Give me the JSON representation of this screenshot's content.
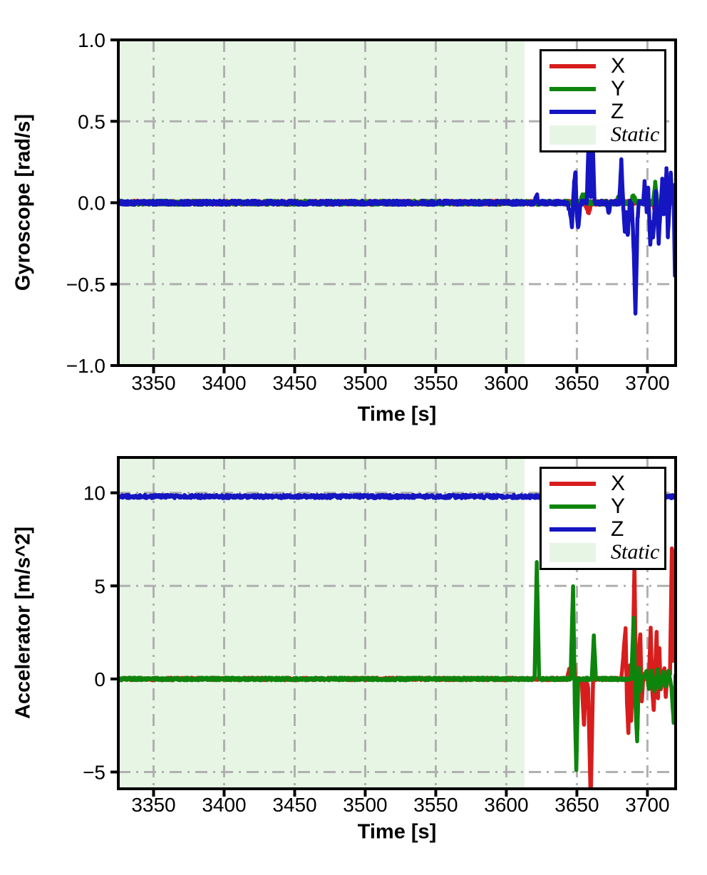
{
  "chart_data": [
    {
      "type": "line",
      "title": "",
      "xlabel": "Time [s]",
      "ylabel": "Gyroscope [rad/s]",
      "xlim": [
        3325,
        3720
      ],
      "ylim": [
        -1.0,
        1.0
      ],
      "xticks": [
        3350,
        3400,
        3450,
        3500,
        3550,
        3600,
        3650,
        3700
      ],
      "xtick_labels": [
        "3350",
        "3400",
        "3450",
        "3500",
        "3550",
        "3600",
        "3650",
        "3700"
      ],
      "yticks": [
        1.0,
        0.5,
        0.0,
        -0.5,
        -1.0
      ],
      "ytick_labels": [
        "1.0",
        "0.5",
        "0.0",
        "−0.5",
        "−1.0"
      ],
      "grid": "dash-dot",
      "grid_color": "#b0b0b0",
      "legend_position": "upper right",
      "static_region": {
        "label": "Static",
        "fill": "#e7f5e5",
        "xstart": 3325,
        "xend": 3613
      },
      "series": [
        {
          "name": "X",
          "color": "#d81d1d",
          "noise": 0.013,
          "anchors": [
            [
              3325,
              0
            ],
            [
              3655,
              0
            ],
            [
              3657,
              -0.03
            ],
            [
              3658.5,
              -0.07
            ],
            [
              3660,
              0
            ],
            [
              3704,
              0
            ],
            [
              3705.5,
              -0.05
            ],
            [
              3707,
              0
            ],
            [
              3720,
              0
            ]
          ]
        },
        {
          "name": "Y",
          "color": "#0d850d",
          "noise": 0.013,
          "anchors": [
            [
              3325,
              0
            ],
            [
              3652,
              0
            ],
            [
              3654,
              0.04
            ],
            [
              3656,
              0.04
            ],
            [
              3658,
              0
            ],
            [
              3678,
              0
            ],
            [
              3680,
              0.04
            ],
            [
              3682,
              0
            ],
            [
              3688,
              0
            ],
            [
              3690,
              0.05
            ],
            [
              3692,
              0
            ],
            [
              3704,
              0
            ],
            [
              3705.5,
              0.13
            ],
            [
              3707,
              0
            ],
            [
              3711,
              0
            ],
            [
              3712.5,
              0.1
            ],
            [
              3714,
              0
            ],
            [
              3720,
              0
            ]
          ]
        },
        {
          "name": "Z",
          "color": "#1515c2",
          "noise": 0.013,
          "anchors": [
            [
              3325,
              0
            ],
            [
              3620,
              0
            ],
            [
              3621.5,
              0.05
            ],
            [
              3623,
              0
            ],
            [
              3643,
              0
            ],
            [
              3645,
              -0.05
            ],
            [
              3646.5,
              -0.14
            ],
            [
              3648,
              0.12
            ],
            [
              3649,
              0.2
            ],
            [
              3650,
              -0.08
            ],
            [
              3651,
              -0.15
            ],
            [
              3652.5,
              0
            ],
            [
              3657,
              0
            ],
            [
              3658.5,
              0.45
            ],
            [
              3659.8,
              0.04
            ],
            [
              3661,
              0.45
            ],
            [
              3662.5,
              0
            ],
            [
              3671,
              0
            ],
            [
              3672.5,
              -0.06
            ],
            [
              3674,
              0
            ],
            [
              3680,
              0
            ],
            [
              3681.5,
              0.26
            ],
            [
              3683,
              -0.04
            ],
            [
              3684,
              -0.18
            ],
            [
              3685,
              -0.06
            ],
            [
              3686,
              -0.21
            ],
            [
              3687.5,
              0
            ],
            [
              3689,
              0
            ],
            [
              3690.5,
              -0.35
            ],
            [
              3691.5,
              -0.67
            ],
            [
              3693,
              -0.1
            ],
            [
              3694,
              0
            ],
            [
              3697,
              0
            ],
            [
              3698,
              0.12
            ],
            [
              3699.5,
              -0.05
            ],
            [
              3700.5,
              0.1
            ],
            [
              3702,
              -0.26
            ],
            [
              3703,
              -0.12
            ],
            [
              3704,
              -0.22
            ],
            [
              3705,
              -0.05
            ],
            [
              3706,
              0.06
            ],
            [
              3707,
              -0.1
            ],
            [
              3708,
              -0.24
            ],
            [
              3709.5,
              0
            ],
            [
              3710.5,
              0.14
            ],
            [
              3711.5,
              -0.08
            ],
            [
              3712.5,
              0.05
            ],
            [
              3713.5,
              0.2
            ],
            [
              3714.5,
              -0.2
            ],
            [
              3715.5,
              -0.05
            ],
            [
              3716.5,
              0.18
            ],
            [
              3717.5,
              0
            ],
            [
              3718.5,
              0.12
            ],
            [
              3719.5,
              -0.45
            ],
            [
              3720,
              -0.3
            ]
          ]
        }
      ]
    },
    {
      "type": "line",
      "title": "",
      "xlabel": "Time [s]",
      "ylabel": "Accelerator [m/s^2]",
      "xlim": [
        3325,
        3720
      ],
      "ylim": [
        -5.9,
        11.9
      ],
      "xticks": [
        3350,
        3400,
        3450,
        3500,
        3550,
        3600,
        3650,
        3700
      ],
      "xtick_labels": [
        "3350",
        "3400",
        "3450",
        "3500",
        "3550",
        "3600",
        "3650",
        "3700"
      ],
      "yticks": [
        10,
        5,
        0,
        -5
      ],
      "ytick_labels": [
        "10",
        "5",
        "0",
        "−5"
      ],
      "grid": "dash-dot",
      "grid_color": "#b0b0b0",
      "legend_position": "upper right",
      "static_region": {
        "label": "Static",
        "fill": "#e7f5e5",
        "xstart": 3325,
        "xend": 3613
      },
      "series": [
        {
          "name": "X",
          "color": "#d81d1d",
          "noise": 0.07,
          "anchors": [
            [
              3325,
              0
            ],
            [
              3643,
              0
            ],
            [
              3644.5,
              0.5
            ],
            [
              3646,
              0.2
            ],
            [
              3647.5,
              1.6
            ],
            [
              3649,
              0
            ],
            [
              3653.5,
              0
            ],
            [
              3655,
              -2.5
            ],
            [
              3656.5,
              0
            ],
            [
              3658,
              -0.5
            ],
            [
              3659.8,
              -6.5
            ],
            [
              3661.5,
              0
            ],
            [
              3681.5,
              0
            ],
            [
              3683,
              1.3
            ],
            [
              3684.5,
              2.7
            ],
            [
              3685.5,
              -1.2
            ],
            [
              3686.5,
              -2.9
            ],
            [
              3687.5,
              0.8
            ],
            [
              3688.5,
              -2.3
            ],
            [
              3689.5,
              0.6
            ],
            [
              3690.8,
              6.1
            ],
            [
              3692,
              -1.2
            ],
            [
              3693,
              -2.7
            ],
            [
              3694,
              1.6
            ],
            [
              3695,
              2.4
            ],
            [
              3696,
              -1.2
            ],
            [
              3697,
              0
            ],
            [
              3701,
              0
            ],
            [
              3702.3,
              2.7
            ],
            [
              3703.5,
              -0.6
            ],
            [
              3704.5,
              -1.7
            ],
            [
              3705.5,
              0.6
            ],
            [
              3706.5,
              2.5
            ],
            [
              3707.5,
              -1
            ],
            [
              3708.5,
              1.6
            ],
            [
              3709.5,
              -0.6
            ],
            [
              3710.5,
              0
            ],
            [
              3712,
              0.6
            ],
            [
              3713,
              -1
            ],
            [
              3714,
              0
            ],
            [
              3716,
              0.3
            ],
            [
              3717.3,
              7
            ],
            [
              3718.3,
              1
            ],
            [
              3719.2,
              6.8
            ],
            [
              3720,
              2.5
            ]
          ]
        },
        {
          "name": "Y",
          "color": "#0d850d",
          "noise": 0.07,
          "anchors": [
            [
              3325,
              0
            ],
            [
              3620,
              0
            ],
            [
              3621.6,
              6.3
            ],
            [
              3623.2,
              0
            ],
            [
              3645.5,
              0
            ],
            [
              3647.3,
              5
            ],
            [
              3648.5,
              -1.2
            ],
            [
              3649.6,
              -4.9
            ],
            [
              3651,
              0
            ],
            [
              3660.5,
              0
            ],
            [
              3662,
              2.3
            ],
            [
              3663.5,
              0
            ],
            [
              3688.5,
              0
            ],
            [
              3690.3,
              3.3
            ],
            [
              3691.5,
              -1.3
            ],
            [
              3692.7,
              -3.4
            ],
            [
              3694,
              0.6
            ],
            [
              3695,
              -0.6
            ],
            [
              3696,
              0
            ],
            [
              3699.5,
              0.4
            ],
            [
              3701,
              -0.6
            ],
            [
              3703,
              0.4
            ],
            [
              3705,
              -0.7
            ],
            [
              3707,
              0.5
            ],
            [
              3709,
              -0.5
            ],
            [
              3711,
              0.4
            ],
            [
              3713,
              -0.4
            ],
            [
              3715,
              0.5
            ],
            [
              3717,
              -0.5
            ],
            [
              3718.6,
              -2.3
            ],
            [
              3720,
              0.3
            ]
          ]
        },
        {
          "name": "Z",
          "color": "#1515c2",
          "noise": 0.09,
          "anchors": [
            [
              3325,
              9.8
            ],
            [
              3720,
              9.8
            ]
          ]
        }
      ]
    }
  ]
}
